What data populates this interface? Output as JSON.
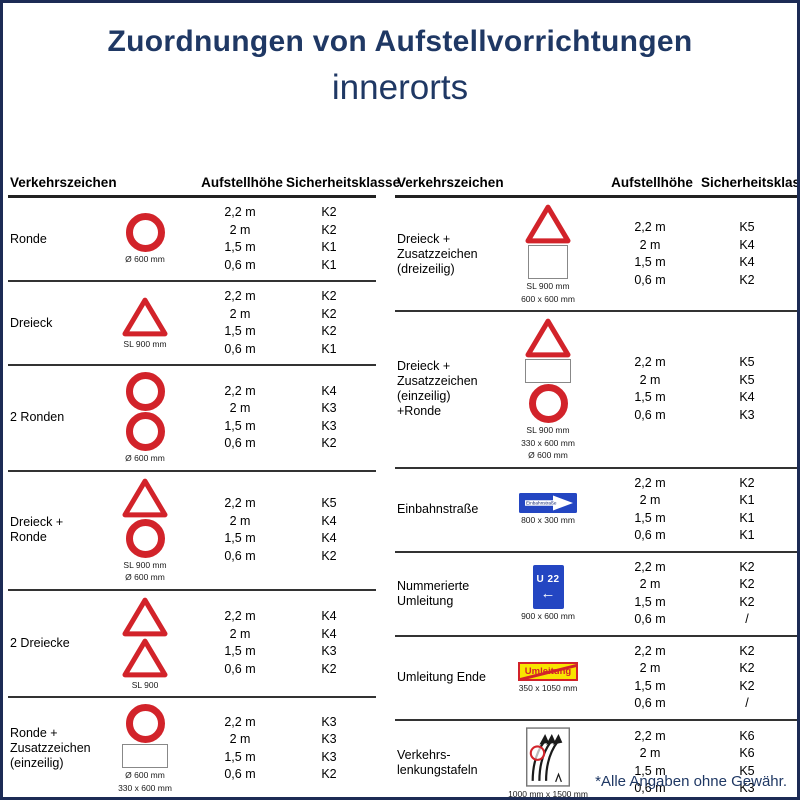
{
  "page": {
    "title": "Zuordnungen von Aufstellvorrichtungen",
    "subtitle": "innerorts",
    "footnote": "*Alle Angaben ohne Gewähr."
  },
  "columns": [
    "Verkehrszeichen",
    "Aufstellhöhe",
    "Sicherheitsklasse"
  ],
  "signs": {
    "einbahnstrasse_text": "Einbahnstraße",
    "u22_text": "U 22",
    "u22_arrow": "←",
    "umleitung_text": "Umleitung"
  },
  "tables": [
    {
      "id": "left",
      "rows": [
        {
          "label": "Ronde",
          "icons": [
            "round"
          ],
          "sizes": [
            "Ø 600 mm"
          ],
          "heights": [
            "2,2 m",
            "2 m",
            "1,5 m",
            "0,6 m"
          ],
          "classes": [
            "K2",
            "K2",
            "K1",
            "K1"
          ]
        },
        {
          "label": "Dreieck",
          "icons": [
            "triangle"
          ],
          "sizes": [
            "SL 900 mm"
          ],
          "heights": [
            "2,2 m",
            "2 m",
            "1,5 m",
            "0,6 m"
          ],
          "classes": [
            "K2",
            "K2",
            "K2",
            "K1"
          ]
        },
        {
          "label": "2 Ronden",
          "icons": [
            "round",
            "round"
          ],
          "sizes": [
            "Ø 600 mm"
          ],
          "heights": [
            "2,2 m",
            "2 m",
            "1,5 m",
            "0,6 m"
          ],
          "classes": [
            "K4",
            "K3",
            "K3",
            "K2"
          ]
        },
        {
          "label": "Dreieck +\nRonde",
          "icons": [
            "triangle",
            "round"
          ],
          "sizes": [
            "SL 900 mm",
            "Ø 600 mm"
          ],
          "heights": [
            "2,2 m",
            "2 m",
            "1,5 m",
            "0,6 m"
          ],
          "classes": [
            "K5",
            "K4",
            "K4",
            "K2"
          ]
        },
        {
          "label": "2 Dreiecke",
          "icons": [
            "triangle",
            "triangle"
          ],
          "sizes": [
            "SL 900"
          ],
          "heights": [
            "2,2 m",
            "2 m",
            "1,5 m",
            "0,6 m"
          ],
          "classes": [
            "K4",
            "K4",
            "K3",
            "K2"
          ]
        },
        {
          "label": "Ronde +\nZusatzzeichen\n(einzeilig)",
          "icons": [
            "round",
            "zusatz"
          ],
          "sizes": [
            "Ø 600 mm",
            "330 x 600 mm"
          ],
          "heights": [
            "2,2 m",
            "2 m",
            "1,5 m",
            "0,6 m"
          ],
          "classes": [
            "K3",
            "K3",
            "K3",
            "K2"
          ]
        }
      ]
    },
    {
      "id": "right",
      "rows": [
        {
          "label": "Dreieck +\nZusatzzeichen\n(dreizeilig)",
          "icons": [
            "triangle",
            "zusatz_square"
          ],
          "sizes": [
            "SL 900 mm",
            "600 x 600 mm"
          ],
          "heights": [
            "2,2 m",
            "2 m",
            "1,5 m",
            "0,6 m"
          ],
          "classes": [
            "K5",
            "K4",
            "K4",
            "K2"
          ]
        },
        {
          "label": "Dreieck +\nZusatzzeichen\n(einzeilig)\n+Ronde",
          "icons": [
            "triangle",
            "zusatz",
            "round"
          ],
          "sizes": [
            "SL 900 mm",
            "330 x 600 mm",
            "Ø 600 mm"
          ],
          "heights": [
            "2,2 m",
            "2 m",
            "1,5 m",
            "0,6 m"
          ],
          "classes": [
            "K5",
            "K5",
            "K4",
            "K3"
          ]
        },
        {
          "label": "Einbahnstraße",
          "icons": [
            "einbahnstrasse"
          ],
          "sizes": [
            "800 x 300 mm"
          ],
          "heights": [
            "2,2 m",
            "2 m",
            "1,5 m",
            "0,6 m"
          ],
          "classes": [
            "K2",
            "K1",
            "K1",
            "K1"
          ]
        },
        {
          "label": "Nummerierte\nUmleitung",
          "icons": [
            "nummerierte_umleitung"
          ],
          "sizes": [
            "900 x 600 mm"
          ],
          "heights": [
            "2,2 m",
            "2 m",
            "1,5 m",
            "0,6 m"
          ],
          "classes": [
            "K2",
            "K2",
            "K2",
            "/"
          ]
        },
        {
          "label": "Umleitung Ende",
          "icons": [
            "umleitung_ende"
          ],
          "sizes": [
            "350 x 1050 mm"
          ],
          "heights": [
            "2,2 m",
            "2 m",
            "1,5 m",
            "0,6 m"
          ],
          "classes": [
            "K2",
            "K2",
            "K2",
            "/"
          ]
        },
        {
          "label": "Verkehrs-\nlenkungstafeln",
          "icons": [
            "verkehrslenkungstafel"
          ],
          "sizes": [
            "1000 mm x 1500 mm"
          ],
          "heights": [
            "2,2 m",
            "2 m",
            "1,5 m",
            "0,6 m"
          ],
          "classes": [
            "K6",
            "K6",
            "K5",
            "K3"
          ]
        }
      ]
    }
  ],
  "colors": {
    "title_blue": "#1f3864",
    "sign_red": "#d2232a",
    "sign_blue": "#2446c2",
    "sign_yellow": "#f8e500",
    "page_border": "#1c2b55",
    "line_dark": "#333333"
  }
}
